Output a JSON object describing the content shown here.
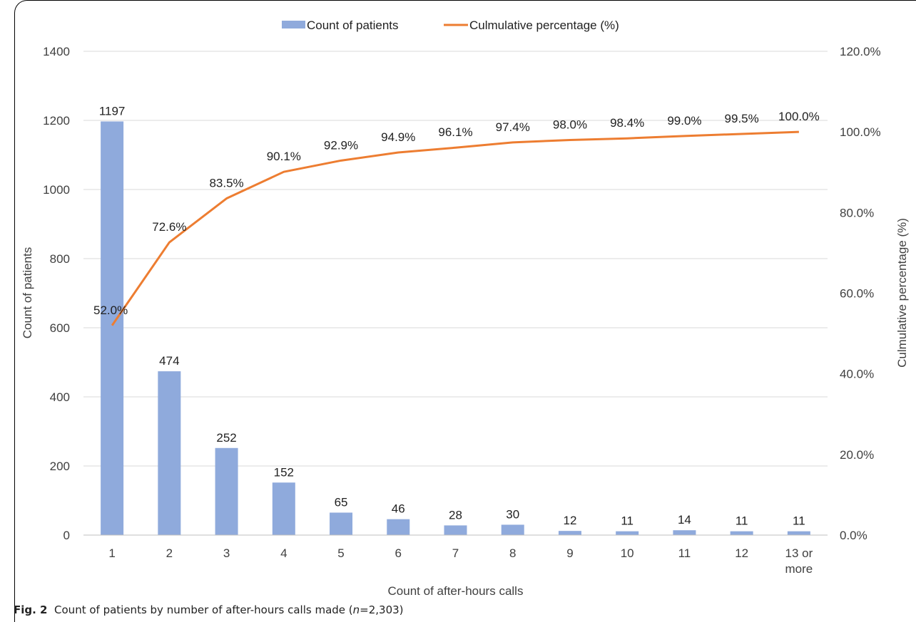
{
  "chart_data": {
    "type": "bar",
    "categories": [
      "1",
      "2",
      "3",
      "4",
      "5",
      "6",
      "7",
      "8",
      "9",
      "10",
      "11",
      "12",
      "13 or more"
    ],
    "series": [
      {
        "name": "Count of patients",
        "type": "bar",
        "axis": "left",
        "color": "#8faadc",
        "values": [
          1197,
          474,
          252,
          152,
          65,
          46,
          28,
          30,
          12,
          11,
          14,
          11,
          11
        ],
        "labels": [
          "1197",
          "474",
          "252",
          "152",
          "65",
          "46",
          "28",
          "30",
          "12",
          "11",
          "14",
          "11",
          "11"
        ]
      },
      {
        "name": "Culmulative percentage (%)",
        "type": "line",
        "axis": "right",
        "color": "#ed7d31",
        "values": [
          52.0,
          72.6,
          83.5,
          90.1,
          92.9,
          94.9,
          96.1,
          97.4,
          98.0,
          98.4,
          99.0,
          99.5,
          100.0
        ],
        "labels": [
          "52.0%",
          "72.6%",
          "83.5%",
          "90.1%",
          "92.9%",
          "94.9%",
          "96.1%",
          "97.4%",
          "98.0%",
          "98.4%",
          "99.0%",
          "99.5%",
          "100.0%"
        ]
      }
    ],
    "xlabel": "Count of after-hours calls",
    "ylabel": "Count of patients",
    "y2label": "Culmulative percentage (%)",
    "ylim": [
      0,
      1400
    ],
    "y2lim": [
      0,
      120
    ],
    "yticks": [
      "0",
      "200",
      "400",
      "600",
      "800",
      "1000",
      "1200",
      "1400"
    ],
    "y2ticks": [
      "0.0%",
      "20.0%",
      "40.0%",
      "60.0%",
      "80.0%",
      "100.0%",
      "120.0%"
    ],
    "grid": true,
    "legend": "top-center"
  },
  "caption": {
    "label": "Fig. 2",
    "text_before": "Count of patients by number of after-hours calls made (",
    "n_symbol": "n",
    "text_after": "=2,303)"
  }
}
